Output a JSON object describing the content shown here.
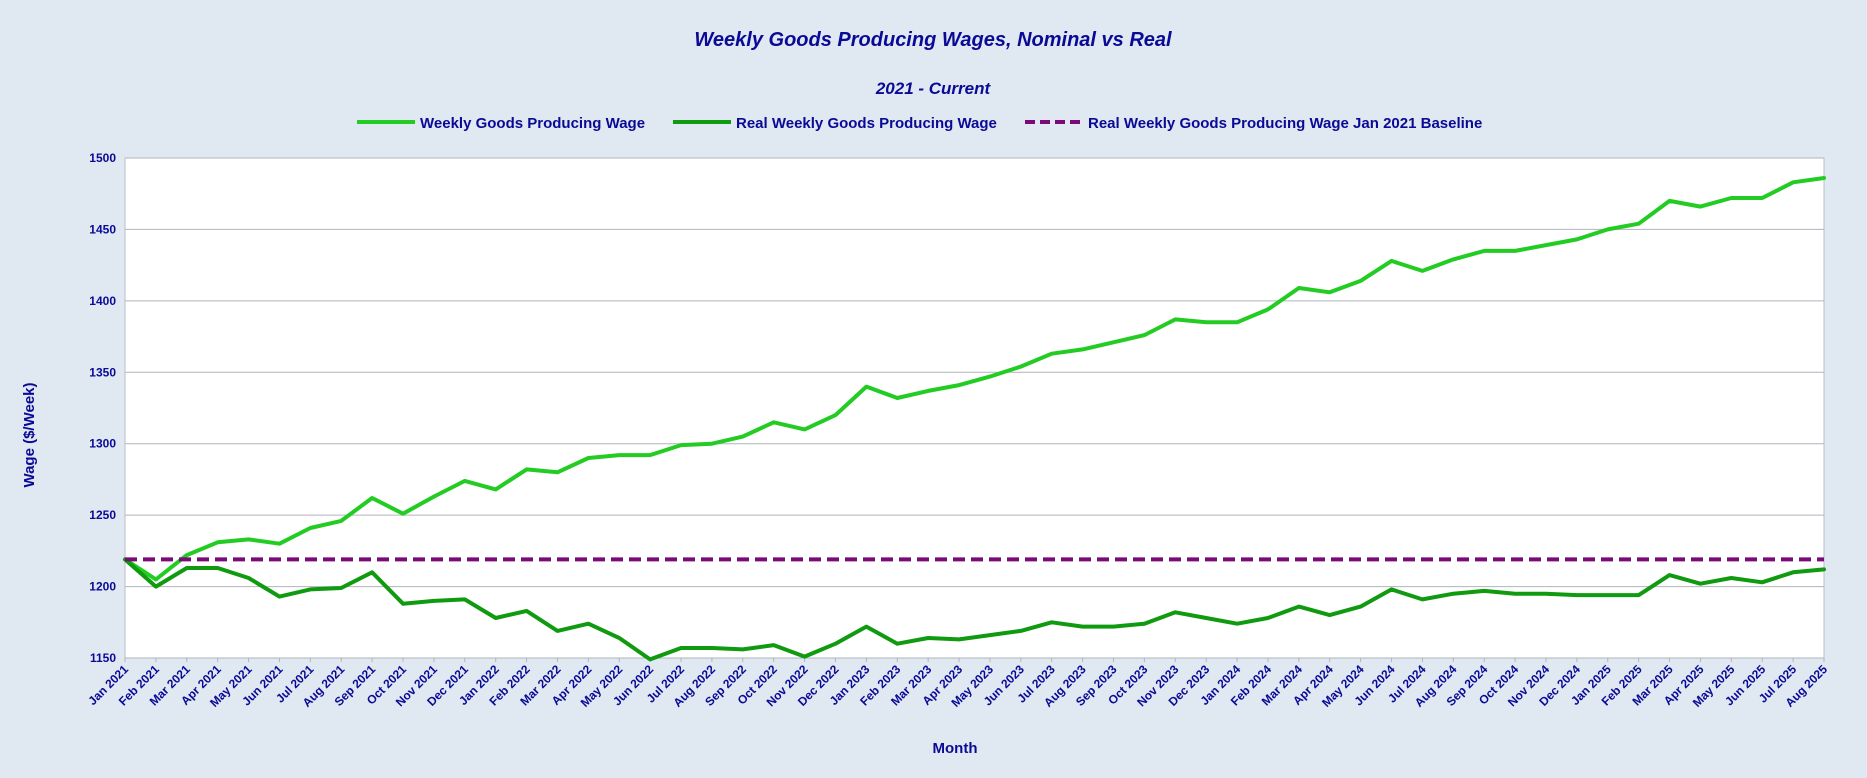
{
  "chart_data": {
    "type": "line",
    "title": "Weekly Goods Producing Wages, Nominal vs Real",
    "subtitle": "2021 - Current",
    "xlabel": "Month",
    "ylabel": "Wage ($/Week)",
    "ylim": [
      1150,
      1500
    ],
    "yticks": [
      1150,
      1200,
      1250,
      1300,
      1350,
      1400,
      1450,
      1500
    ],
    "grid": true,
    "legend_position": "top",
    "categories": [
      "Jan 2021",
      "Feb 2021",
      "Mar 2021",
      "Apr 2021",
      "May 2021",
      "Jun 2021",
      "Jul 2021",
      "Aug 2021",
      "Sep 2021",
      "Oct 2021",
      "Nov 2021",
      "Dec 2021",
      "Jan 2022",
      "Feb 2022",
      "Mar 2022",
      "Apr 2022",
      "May 2022",
      "Jun 2022",
      "Jul 2022",
      "Aug 2022",
      "Sep 2022",
      "Oct 2022",
      "Nov 2022",
      "Dec 2022",
      "Jan 2023",
      "Feb 2023",
      "Mar 2023",
      "Apr 2023",
      "May 2023",
      "Jun 2023",
      "Jul 2023",
      "Aug 2023",
      "Sep 2023",
      "Oct 2023",
      "Nov 2023",
      "Dec 2023",
      "Jan 2024",
      "Feb 2024",
      "Mar 2024",
      "Apr 2024",
      "May 2024",
      "Jun 2024",
      "Jul 2024",
      "Aug 2024",
      "Sep 2024",
      "Oct 2024",
      "Nov 2024",
      "Dec 2024",
      "Jan 2025",
      "Feb 2025",
      "Mar 2025",
      "Apr 2025",
      "May 2025",
      "Jun 2025",
      "Jul 2025",
      "Aug 2025"
    ],
    "series": [
      {
        "name": "Weekly Goods Producing Wage",
        "color": "#22cc22",
        "dash": false,
        "values": [
          1219,
          1205,
          1222,
          1231,
          1233,
          1230,
          1241,
          1246,
          1262,
          1251,
          1263,
          1274,
          1268,
          1282,
          1280,
          1290,
          1292,
          1292,
          1299,
          1300,
          1305,
          1315,
          1310,
          1320,
          1340,
          1332,
          1337,
          1341,
          1347,
          1354,
          1363,
          1366,
          1371,
          1376,
          1387,
          1385,
          1385,
          1394,
          1409,
          1406,
          1414,
          1428,
          1421,
          1429,
          1435,
          1435,
          1439,
          1443,
          1450,
          1454,
          1470,
          1466,
          1472,
          1472,
          1483,
          1486
        ]
      },
      {
        "name": "Real Weekly Goods Producing Wage",
        "color": "#0f9a0f",
        "dash": false,
        "values": [
          1219,
          1200,
          1213,
          1213,
          1206,
          1193,
          1198,
          1199,
          1210,
          1188,
          1190,
          1191,
          1178,
          1183,
          1169,
          1174,
          1164,
          1149,
          1157,
          1157,
          1156,
          1159,
          1151,
          1160,
          1172,
          1160,
          1164,
          1163,
          1166,
          1169,
          1175,
          1172,
          1172,
          1174,
          1182,
          1178,
          1174,
          1178,
          1186,
          1180,
          1186,
          1198,
          1191,
          1195,
          1197,
          1195,
          1195,
          1194,
          1194,
          1194,
          1208,
          1202,
          1206,
          1203,
          1210,
          1212
        ]
      },
      {
        "name": "Real Weekly Goods Producing Wage Jan 2021 Baseline",
        "color": "#7a0a7a",
        "dash": true,
        "values": [
          1219,
          1219,
          1219,
          1219,
          1219,
          1219,
          1219,
          1219,
          1219,
          1219,
          1219,
          1219,
          1219,
          1219,
          1219,
          1219,
          1219,
          1219,
          1219,
          1219,
          1219,
          1219,
          1219,
          1219,
          1219,
          1219,
          1219,
          1219,
          1219,
          1219,
          1219,
          1219,
          1219,
          1219,
          1219,
          1219,
          1219,
          1219,
          1219,
          1219,
          1219,
          1219,
          1219,
          1219,
          1219,
          1219,
          1219,
          1219,
          1219,
          1219,
          1219,
          1219,
          1219,
          1219,
          1219,
          1219
        ]
      }
    ]
  }
}
